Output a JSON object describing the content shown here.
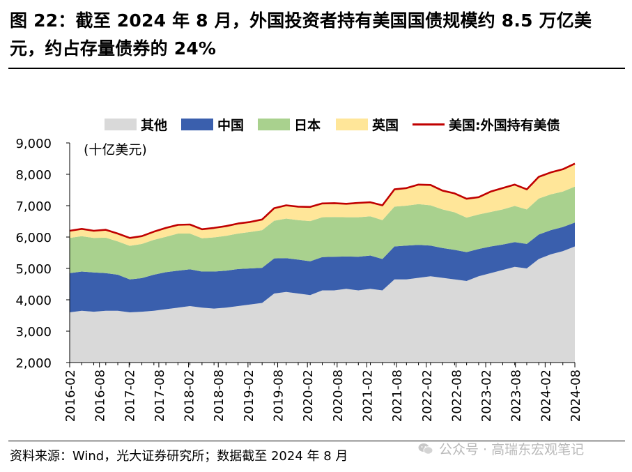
{
  "title": "图 22：截至 2024 年 8 月，外国投资者持有美国国债规模约 8.5 万亿美元，约占存量债券的 24%",
  "source": "资料来源：Wind，光大证券研究所；数据截至 2024 年 8 月",
  "watermark": "公众号 · 高瑞东宏观笔记",
  "chart_data": {
    "type": "area",
    "unit_label": "(十亿美元)",
    "ylim": [
      2000,
      9000
    ],
    "yticks": [
      2000,
      3000,
      4000,
      5000,
      6000,
      7000,
      8000,
      9000
    ],
    "ytick_labels": [
      "2,000",
      "3,000",
      "4,000",
      "5,000",
      "6,000",
      "7,000",
      "8,000",
      "9,000"
    ],
    "xtick_labels": [
      "2016-02",
      "2016-08",
      "2017-02",
      "2017-08",
      "2018-02",
      "2018-08",
      "2019-02",
      "2019-08",
      "2020-02",
      "2020-08",
      "2021-02",
      "2021-08",
      "2022-02",
      "2022-08",
      "2023-02",
      "2023-08",
      "2024-02",
      "2024-08"
    ],
    "legend_position": "top",
    "legend": [
      {
        "name": "其他",
        "color": "#d9d9d9",
        "kind": "area"
      },
      {
        "name": "中国",
        "color": "#3a5fad",
        "kind": "area"
      },
      {
        "name": "日本",
        "color": "#a9d18e",
        "kind": "area"
      },
      {
        "name": "英国",
        "color": "#ffe699",
        "kind": "area"
      },
      {
        "name": "美国:外国持有美债",
        "color": "#c00000",
        "kind": "line"
      }
    ],
    "series": [
      {
        "name": "其他",
        "values": [
          3600,
          3650,
          3620,
          3650,
          3650,
          3600,
          3620,
          3650,
          3700,
          3750,
          3800,
          3750,
          3720,
          3750,
          3800,
          3850,
          3900,
          4200,
          4250,
          4200,
          4150,
          4300,
          4300,
          4350,
          4300,
          4350,
          4300,
          4650,
          4650,
          4700,
          4750,
          4700,
          4650,
          4600,
          4750,
          4850,
          4950,
          5050,
          5000,
          5300,
          5450,
          5550,
          5700
        ]
      },
      {
        "name": "中国",
        "values": [
          1250,
          1250,
          1250,
          1200,
          1150,
          1050,
          1070,
          1150,
          1180,
          1180,
          1170,
          1150,
          1180,
          1180,
          1180,
          1150,
          1120,
          1120,
          1080,
          1080,
          1080,
          1060,
          1070,
          1030,
          1070,
          1060,
          1000,
          1050,
          1080,
          1050,
          980,
          950,
          940,
          920,
          870,
          850,
          810,
          790,
          780,
          780,
          770,
          770,
          760
        ]
      },
      {
        "name": "日本",
        "values": [
          1120,
          1130,
          1100,
          1130,
          1060,
          1070,
          1090,
          1110,
          1130,
          1180,
          1140,
          1060,
          1090,
          1110,
          1130,
          1160,
          1200,
          1200,
          1260,
          1260,
          1280,
          1270,
          1270,
          1250,
          1260,
          1250,
          1240,
          1270,
          1270,
          1300,
          1280,
          1230,
          1200,
          1100,
          1100,
          1100,
          1120,
          1150,
          1100,
          1150,
          1140,
          1130,
          1150
        ]
      },
      {
        "name": "英国",
        "values": [
          230,
          230,
          230,
          250,
          250,
          250,
          250,
          260,
          280,
          280,
          290,
          290,
          300,
          310,
          320,
          320,
          340,
          400,
          420,
          430,
          450,
          440,
          440,
          430,
          460,
          450,
          470,
          550,
          560,
          620,
          650,
          600,
          600,
          600,
          550,
          650,
          680,
          680,
          640,
          690,
          700,
          710,
          730
        ]
      },
      {
        "name": "美国:外国持有美债",
        "values": [
          6200,
          6260,
          6200,
          6230,
          6110,
          5970,
          6030,
          6170,
          6290,
          6390,
          6400,
          6250,
          6290,
          6350,
          6430,
          6480,
          6560,
          6920,
          7010,
          6970,
          6960,
          7070,
          7080,
          7060,
          7090,
          7110,
          7010,
          7520,
          7560,
          7670,
          7660,
          7480,
          7390,
          7220,
          7270,
          7450,
          7560,
          7670,
          7520,
          7920,
          8060,
          8160,
          8340
        ]
      }
    ]
  }
}
